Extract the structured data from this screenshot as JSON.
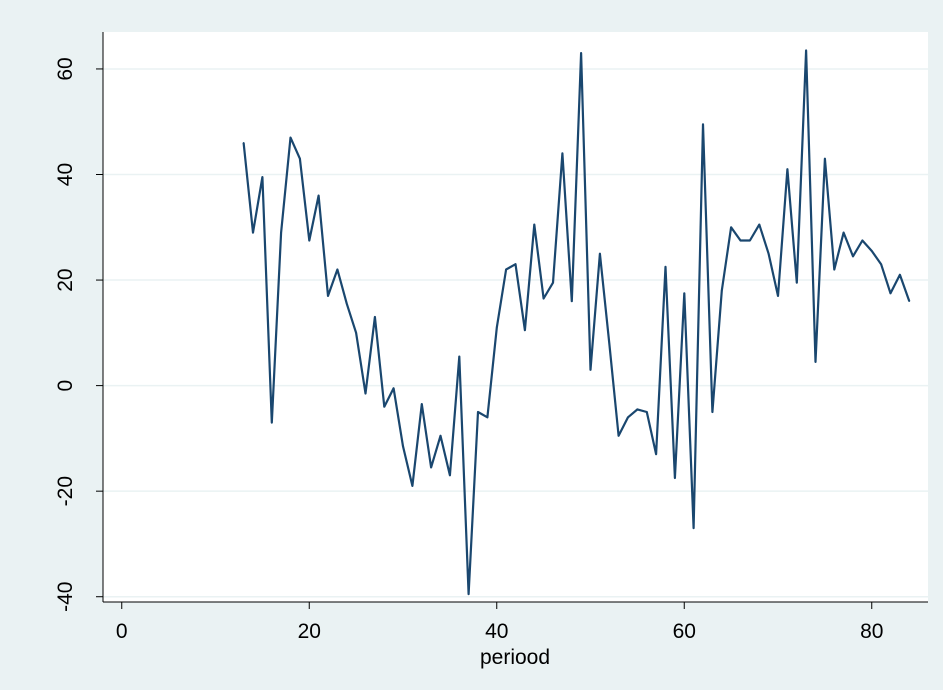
{
  "chart_data": {
    "type": "line",
    "title": "",
    "xlabel": "periood",
    "ylabel": "",
    "xlim": [
      -2,
      86
    ],
    "ylim": [
      -41,
      67
    ],
    "x_ticks": [
      0,
      20,
      40,
      60,
      80
    ],
    "x_tick_labels": [
      "0",
      "20",
      "40",
      "60",
      "80"
    ],
    "y_ticks": [
      -40,
      -20,
      0,
      20,
      40,
      60
    ],
    "y_tick_labels": [
      "-40",
      "-20",
      "0",
      "20",
      "40",
      "60"
    ],
    "grid": true,
    "series": [
      {
        "color": "#1a476f",
        "x": [
          13,
          14,
          15,
          16,
          17,
          18,
          19,
          20,
          21,
          22,
          23,
          24,
          25,
          26,
          27,
          28,
          29,
          30,
          31,
          32,
          33,
          34,
          35,
          36,
          37,
          38,
          39,
          40,
          41,
          42,
          43,
          44,
          45,
          46,
          47,
          48,
          49,
          50,
          51,
          52,
          53,
          54,
          55,
          56,
          57,
          58,
          59,
          60,
          61,
          62,
          63,
          64,
          65,
          66,
          67,
          68,
          69,
          70,
          71,
          72,
          73,
          74,
          75,
          76,
          77,
          78,
          79,
          80,
          81,
          82,
          83,
          84
        ],
        "values": [
          46,
          29,
          39.5,
          -7,
          29,
          47,
          43,
          27.5,
          36,
          17,
          22,
          15.5,
          10,
          -1.5,
          13,
          -4,
          -0.5,
          -11.5,
          -19,
          -3.5,
          -15.5,
          -9.5,
          -17,
          5.5,
          -39.5,
          -5,
          -6,
          11,
          22,
          23,
          10.5,
          30.5,
          16.5,
          19.5,
          44,
          16,
          63,
          3,
          25,
          8,
          -9.5,
          -6,
          -4.5,
          -5,
          -13,
          22.5,
          -17.5,
          17.5,
          -27,
          49.5,
          -5,
          18,
          30,
          27.5,
          27.5,
          30.5,
          25,
          17,
          41,
          19.5,
          63.5,
          4.5,
          43,
          22,
          29,
          24.5,
          27.5,
          25.5,
          23,
          17.5,
          21,
          16
        ]
      }
    ]
  }
}
